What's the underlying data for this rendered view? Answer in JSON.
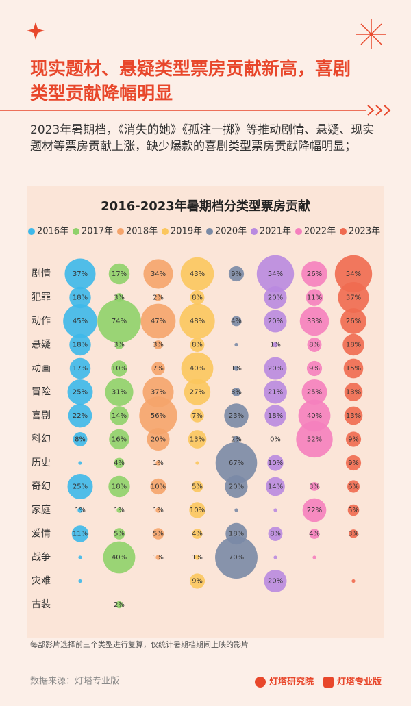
{
  "header": {
    "title_lines": [
      "现实题材、悬疑类型票房贡献新高，喜剧",
      "类型贡献降幅明显"
    ],
    "description": "2023年暑期档，《消失的她》《孤注一掷》等推动剧情、悬疑、现实题材等票房贡献上涨，缺少爆款的喜剧类型票房贡献降幅明显；"
  },
  "chart_data": {
    "type": "bubble",
    "title": "2016-2023年暑期档分类型票房贡献",
    "categories": [
      "剧情",
      "犯罪",
      "动作",
      "悬疑",
      "动画",
      "冒险",
      "喜剧",
      "科幻",
      "历史",
      "奇幻",
      "家庭",
      "爱情",
      "战争",
      "灾难",
      "古装"
    ],
    "series": [
      {
        "name": "2016年",
        "color": "#3db8ea",
        "values": [
          37,
          18,
          45,
          18,
          17,
          25,
          22,
          8,
          0.5,
          25,
          1,
          11,
          0.5,
          0.5,
          null
        ],
        "value_labels": [
          "37%",
          "18%",
          "45%",
          "18%",
          "17%",
          "25%",
          "22%",
          "8%",
          null,
          "25%",
          "1%",
          "11%",
          null,
          null,
          null
        ]
      },
      {
        "name": "2017年",
        "color": "#8fd16a",
        "values": [
          17,
          3,
          74,
          3,
          10,
          31,
          14,
          16,
          4,
          18,
          1,
          5,
          40,
          null,
          2
        ],
        "value_labels": [
          "17%",
          "3%",
          "74%",
          "3%",
          "10%",
          "31%",
          "14%",
          "16%",
          "4%",
          "18%",
          "1%",
          "5%",
          "40%",
          null,
          "2%"
        ]
      },
      {
        "name": "2018年",
        "color": "#f5a46b",
        "values": [
          34,
          2,
          47,
          3,
          7,
          37,
          56,
          20,
          1,
          10,
          1,
          5,
          1,
          null,
          null
        ],
        "value_labels": [
          "34%",
          "2%",
          "47%",
          "3%",
          "7%",
          "37%",
          "56%",
          "20%",
          "1%",
          "10%",
          "1%",
          "5%",
          "1%",
          null,
          null
        ]
      },
      {
        "name": "2019年",
        "color": "#fbc75e",
        "values": [
          43,
          8,
          48,
          8,
          40,
          27,
          7,
          13,
          0.5,
          5,
          10,
          4,
          1,
          9,
          null
        ],
        "value_labels": [
          "43%",
          "8%",
          "48%",
          "8%",
          "40%",
          "27%",
          "7%",
          "13%",
          null,
          "5%",
          "10%",
          "4%",
          "1%",
          "9%",
          null
        ]
      },
      {
        "name": "2020年",
        "color": "#7a8aa6",
        "values": [
          9,
          null,
          4,
          0.5,
          1,
          3,
          23,
          2,
          67,
          20,
          0.5,
          18,
          70,
          null,
          null
        ],
        "value_labels": [
          "9%",
          null,
          "4%",
          null,
          "1%",
          "3%",
          "23%",
          "2%",
          "67%",
          "20%",
          null,
          "18%",
          "70%",
          null,
          null
        ]
      },
      {
        "name": "2021年",
        "color": "#b98ae0",
        "values": [
          54,
          20,
          20,
          1,
          20,
          21,
          18,
          0,
          10,
          14,
          0.5,
          8,
          0.5,
          20,
          null
        ],
        "value_labels": [
          "54%",
          "20%",
          "20%",
          "1%",
          "20%",
          "21%",
          "18%",
          "0%",
          "10%",
          "14%",
          null,
          "8%",
          null,
          "20%",
          null
        ]
      },
      {
        "name": "2022年",
        "color": "#f57fbe",
        "values": [
          26,
          11,
          33,
          8,
          9,
          25,
          40,
          52,
          null,
          3,
          22,
          4,
          0.5,
          null,
          null
        ],
        "value_labels": [
          "26%",
          "11%",
          "33%",
          "8%",
          "9%",
          "25%",
          "40%",
          "52%",
          null,
          "3%",
          "22%",
          "4%",
          null,
          null,
          null
        ]
      },
      {
        "name": "2023年",
        "color": "#ef6a50",
        "values": [
          54,
          37,
          26,
          18,
          15,
          13,
          13,
          9,
          9,
          6,
          5,
          3,
          null,
          0.5,
          null
        ],
        "value_labels": [
          "54%",
          "37%",
          "26%",
          "18%",
          "15%",
          "13%",
          "13%",
          "9%",
          "9%",
          "6%",
          "5%",
          "3%",
          null,
          null,
          null
        ]
      }
    ],
    "note": "每部影片选择前三个类型进行复算，仅统计暑期档期间上映的影片"
  },
  "footer": {
    "source": "数据来源：灯塔专业版",
    "logos": [
      "灯塔研究院",
      "灯塔专业版"
    ]
  }
}
